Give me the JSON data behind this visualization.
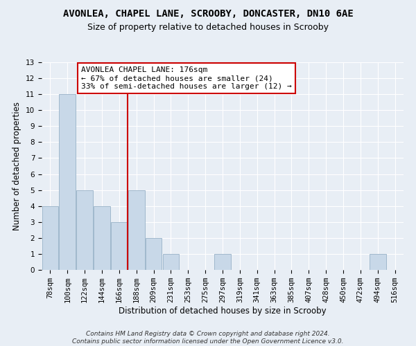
{
  "title": "AVONLEA, CHAPEL LANE, SCROOBY, DONCASTER, DN10 6AE",
  "subtitle": "Size of property relative to detached houses in Scrooby",
  "xlabel": "Distribution of detached houses by size in Scrooby",
  "ylabel": "Number of detached properties",
  "categories": [
    "78sqm",
    "100sqm",
    "122sqm",
    "144sqm",
    "166sqm",
    "188sqm",
    "209sqm",
    "231sqm",
    "253sqm",
    "275sqm",
    "297sqm",
    "319sqm",
    "341sqm",
    "363sqm",
    "385sqm",
    "407sqm",
    "428sqm",
    "450sqm",
    "472sqm",
    "494sqm",
    "516sqm"
  ],
  "values": [
    4,
    11,
    5,
    4,
    3,
    5,
    2,
    1,
    0,
    0,
    1,
    0,
    0,
    0,
    0,
    0,
    0,
    0,
    0,
    1,
    0
  ],
  "bar_color": "#c8d8e8",
  "bar_edge_color": "#a0b8cc",
  "vline_x_index": 4.5,
  "vline_color": "#cc0000",
  "annotation_text": "AVONLEA CHAPEL LANE: 176sqm\n← 67% of detached houses are smaller (24)\n33% of semi-detached houses are larger (12) →",
  "annotation_box_facecolor": "#ffffff",
  "annotation_box_edgecolor": "#cc0000",
  "ylim": [
    0,
    13
  ],
  "yticks": [
    0,
    1,
    2,
    3,
    4,
    5,
    6,
    7,
    8,
    9,
    10,
    11,
    12,
    13
  ],
  "background_color": "#e8eef5",
  "grid_color": "#ffffff",
  "footer_text": "Contains HM Land Registry data © Crown copyright and database right 2024.\nContains public sector information licensed under the Open Government Licence v3.0.",
  "title_fontsize": 10,
  "subtitle_fontsize": 9,
  "axis_label_fontsize": 8.5,
  "tick_fontsize": 7.5,
  "annotation_fontsize": 8,
  "footer_fontsize": 6.5
}
